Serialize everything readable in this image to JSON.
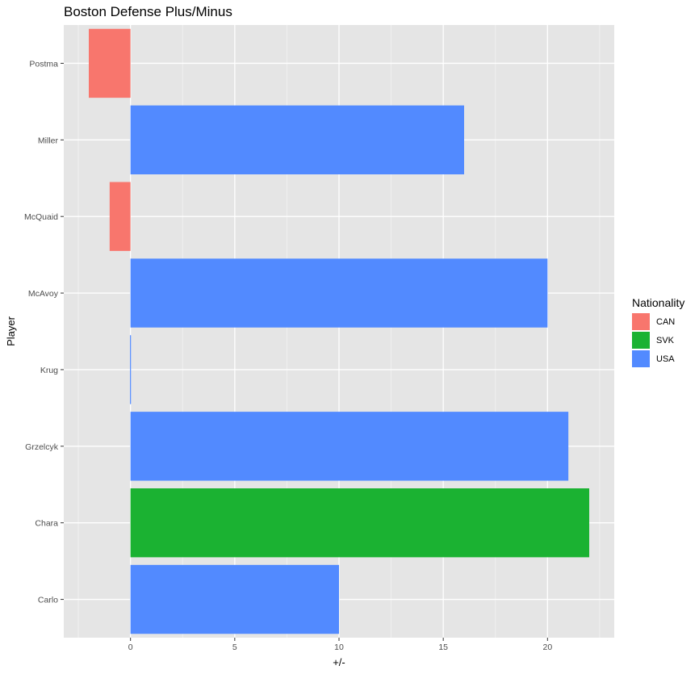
{
  "chart_data": {
    "type": "bar",
    "orientation": "horizontal",
    "title": "Boston Defense Plus/Minus",
    "xlabel": "+/-",
    "ylabel": "Player",
    "categories": [
      "Carlo",
      "Chara",
      "Grzelcyk",
      "Krug",
      "McAvoy",
      "McQuaid",
      "Miller",
      "Postma"
    ],
    "values": [
      10,
      22,
      21,
      0,
      20,
      -1,
      16,
      -2
    ],
    "nationality": [
      "USA",
      "SVK",
      "USA",
      "USA",
      "USA",
      "CAN",
      "USA",
      "CAN"
    ],
    "xlim": [
      -3.2,
      23.2
    ],
    "xticks": [
      0,
      5,
      10,
      15,
      20
    ],
    "grid": true,
    "legend": {
      "title": "Nationality",
      "position": "right",
      "entries": [
        {
          "label": "CAN",
          "color": "#F8766D"
        },
        {
          "label": "SVK",
          "color": "#1BB232"
        },
        {
          "label": "USA",
          "color": "#528AFF"
        }
      ]
    },
    "colors": {
      "panel": "#E5E5E5",
      "grid_major": "#FFFFFF",
      "grid_minor": "#F2F2F2",
      "axis_text": "#4D4D4D",
      "tick": "#333333"
    }
  }
}
